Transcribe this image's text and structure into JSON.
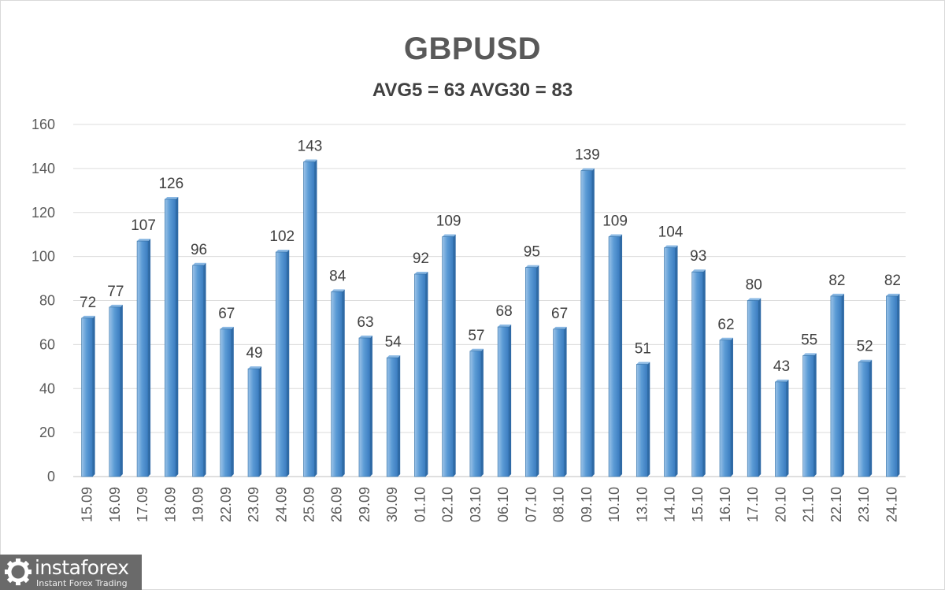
{
  "chart_data": {
    "type": "bar",
    "title": "GBPUSD",
    "subtitle": "AVG5 = 63 AVG30 = 83",
    "categories": [
      "15.09",
      "16.09",
      "17.09",
      "18.09",
      "19.09",
      "22.09",
      "23.09",
      "24.09",
      "25.09",
      "26.09",
      "29.09",
      "30.09",
      "01.10",
      "02.10",
      "03.10",
      "06.10",
      "07.10",
      "08.10",
      "09.10",
      "10.10",
      "13.10",
      "14.10",
      "15.10",
      "16.10",
      "17.10",
      "20.10",
      "21.10",
      "22.10",
      "23.10",
      "24.10"
    ],
    "values": [
      72,
      77,
      107,
      126,
      96,
      67,
      49,
      102,
      143,
      84,
      63,
      54,
      92,
      109,
      57,
      68,
      95,
      67,
      139,
      109,
      51,
      104,
      93,
      62,
      80,
      43,
      55,
      82,
      52,
      82
    ],
    "ylim": [
      0,
      160
    ],
    "yticks": [
      0,
      20,
      40,
      60,
      80,
      100,
      120,
      140,
      160
    ],
    "grid": true,
    "data_labels": true,
    "bar_color": "#5b9bd5"
  },
  "logo": {
    "name": "instaforex",
    "tagline": "Instant Forex Trading"
  }
}
